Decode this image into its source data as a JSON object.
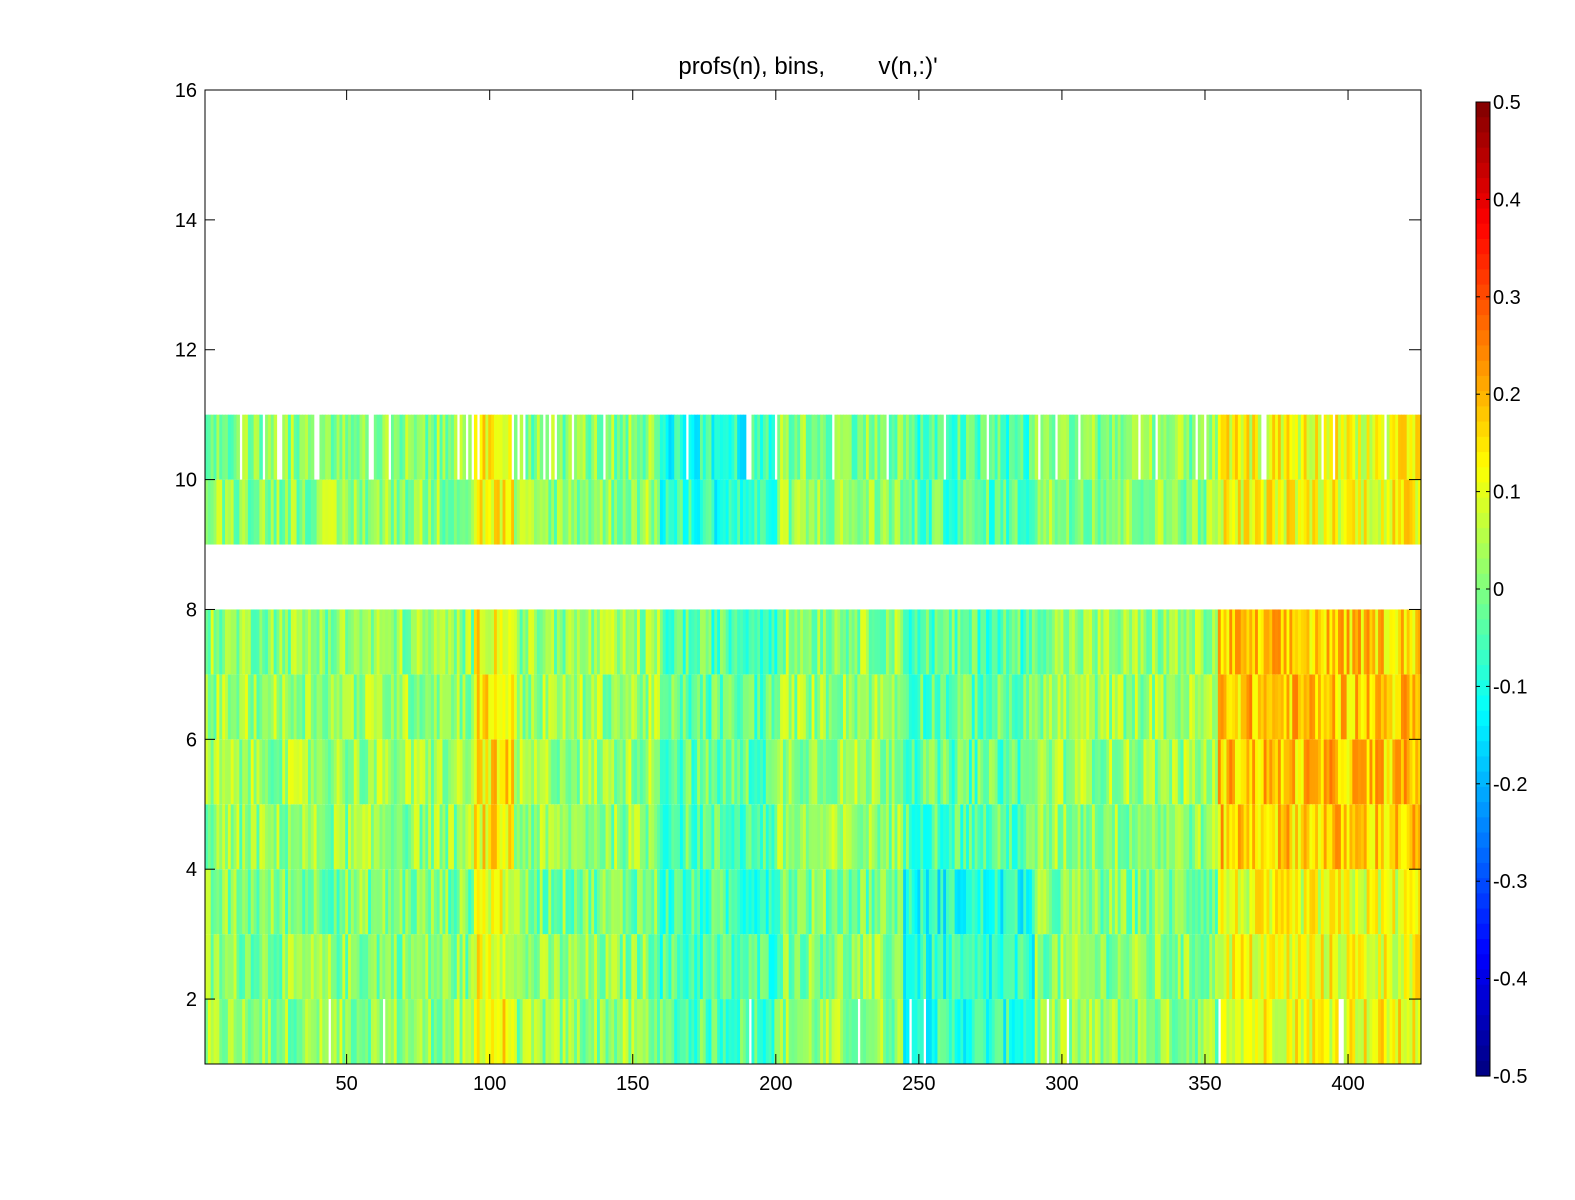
{
  "chart_data": {
    "type": "heatmap",
    "title": "profs(n), bins,        v(n,:)'",
    "xlabel": "",
    "ylabel": "",
    "xlim": [
      0.5,
      425.5
    ],
    "ylim": [
      1,
      16
    ],
    "xticks": [
      50,
      100,
      150,
      200,
      250,
      300,
      350,
      400
    ],
    "yticks": [
      2,
      4,
      6,
      8,
      10,
      12,
      14,
      16
    ],
    "colorbar": {
      "clim": [
        -0.5,
        0.5
      ],
      "ticks": [
        0.5,
        0.4,
        0.3,
        0.2,
        0.1,
        0,
        -0.1,
        -0.2,
        -0.3,
        -0.4,
        -0.5
      ],
      "colormap": "jet",
      "location": "right"
    },
    "profiles": 425,
    "bins": [
      {
        "bin": 1,
        "mean": 0.02,
        "note": "sparse white gaps (NaN)"
      },
      {
        "bin": 2,
        "mean": 0.01
      },
      {
        "bin": 3,
        "mean": 0.0
      },
      {
        "bin": 4,
        "mean": 0.02
      },
      {
        "bin": 5,
        "mean": 0.03
      },
      {
        "bin": 6,
        "mean": 0.03
      },
      {
        "bin": 7,
        "mean": 0.02
      },
      {
        "bin": 8,
        "mean": null,
        "note": "all NaN"
      },
      {
        "bin": 9,
        "mean": 0.02
      },
      {
        "bin": 10,
        "mean": 0.01,
        "note": "many white gaps (NaN)"
      },
      {
        "bin": 11,
        "mean": null,
        "note": "all NaN"
      },
      {
        "bin": 12,
        "mean": null,
        "note": "all NaN"
      },
      {
        "bin": 13,
        "mean": null,
        "note": "all NaN"
      },
      {
        "bin": 14,
        "mean": null,
        "note": "all NaN"
      },
      {
        "bin": 15,
        "mean": null,
        "note": "all NaN"
      }
    ],
    "features": [
      {
        "x_range": [
          95,
          108
        ],
        "value": 0.22,
        "description": "warm streak"
      },
      {
        "x_range": [
          160,
          200
        ],
        "value": -0.12,
        "description": "cool region in upper bins"
      },
      {
        "x_range": [
          245,
          290
        ],
        "value": -0.12,
        "description": "cool region in lower bins"
      },
      {
        "x_range": [
          355,
          425
        ],
        "value": 0.2,
        "description": "warm region in middle bins"
      }
    ]
  }
}
